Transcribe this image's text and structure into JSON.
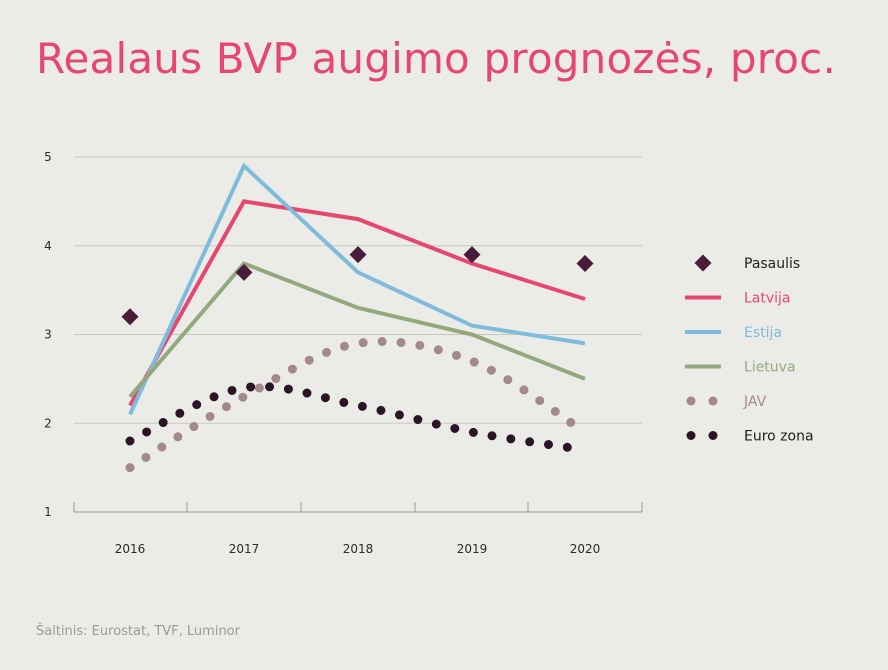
{
  "chart_data": {
    "type": "line",
    "title": "Realaus BVP augimo prognozės, proc.",
    "categories": [
      "2016",
      "2017",
      "2018",
      "2019",
      "2020"
    ],
    "y_ticks": [
      "1",
      "2",
      "3",
      "4",
      "5"
    ],
    "ylim": [
      1,
      5
    ],
    "grid": true,
    "legend_position": "right",
    "series": [
      {
        "name": "Pasaulis",
        "style": "diamond",
        "color": "#4a1c3a",
        "values": [
          3.2,
          3.7,
          3.9,
          3.9,
          3.8
        ]
      },
      {
        "name": "Latvija",
        "style": "line",
        "color": "#e6476e",
        "values": [
          2.2,
          4.5,
          4.3,
          3.8,
          3.4
        ]
      },
      {
        "name": "Estija",
        "style": "line",
        "color": "#7fbcdc",
        "values": [
          2.1,
          4.9,
          3.7,
          3.1,
          2.9
        ]
      },
      {
        "name": "Lietuva",
        "style": "line",
        "color": "#93a97d",
        "values": [
          2.3,
          3.8,
          3.3,
          3.0,
          2.5
        ]
      },
      {
        "name": "JAV",
        "style": "dotted",
        "color": "#a4888f",
        "values": [
          1.5,
          2.3,
          2.9,
          2.7,
          1.9
        ]
      },
      {
        "name": "Euro zona",
        "style": "dotted",
        "color": "#2a1426",
        "values": [
          1.8,
          2.4,
          2.2,
          1.9,
          1.7
        ]
      }
    ]
  },
  "source": "Šaltinis: Eurostat, TVF, Luminor"
}
